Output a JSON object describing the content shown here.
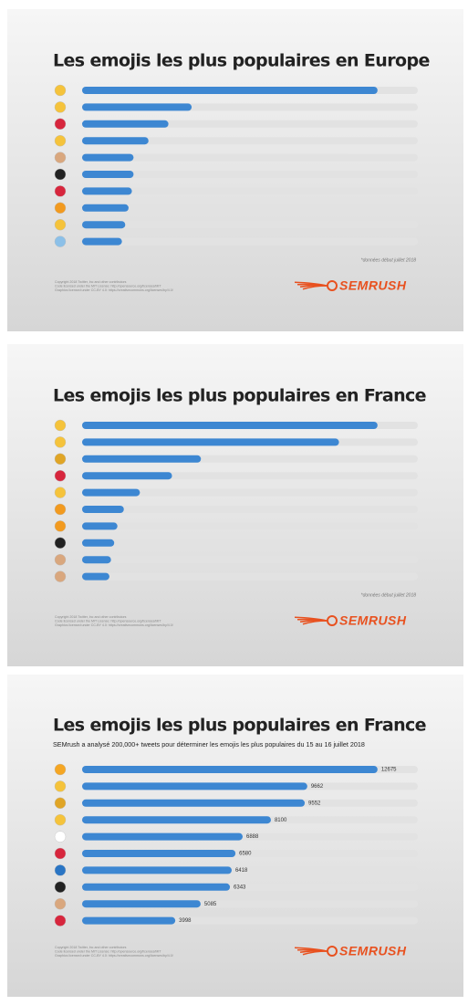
{
  "chart_data": [
    {
      "type": "bar",
      "title": "Les emojis les plus populaires en Europe",
      "values": [
        89,
        33,
        26,
        20,
        15.5,
        15.5,
        15,
        14,
        13,
        12
      ],
      "color": "#3d87d2",
      "data_labels": false,
      "note": "*données début juillet 2018",
      "credits": [
        "Copyright 2018 Twitter, Inc and other contributors",
        "Code licensed under the MIT License: http://opensource.org/licenses/MIT",
        "Graphics licensed under CC-BY 4.0: https://creativecommons.org/licenses/by/4.0/"
      ],
      "logo": "SEMRUSH"
    },
    {
      "type": "bar",
      "title": "Les emojis les plus populaires en France",
      "values": [
        92,
        80,
        37,
        28,
        18,
        13,
        11,
        10,
        9,
        8.5
      ],
      "color": "#3d87d2",
      "data_labels": false,
      "note": "*données début juillet 2018",
      "credits": [
        "Copyright 2018 Twitter, Inc and other contributors",
        "Code licensed under the MIT License: http://opensource.org/licenses/MIT",
        "Graphics licensed under CC-BY 4.0: https://creativecommons.org/licenses/by/4.0/"
      ],
      "logo": "SEMRUSH"
    },
    {
      "type": "bar",
      "title": "Les emojis les plus populaires en France",
      "subtitle": "SEMrush a analysé 200,000+ tweets pour déterminer les emojis les plus populaires du 15 au 16 juillet 2018",
      "values": [
        12675,
        9662,
        9552,
        8100,
        6888,
        6580,
        6418,
        6343,
        5085,
        3998
      ],
      "color": "#3d87d2",
      "data_labels": true,
      "credits": [
        "Copyright 2018 Twitter, Inc and other contributors",
        "Code licensed under the MIT License: http://opensource.org/licenses/MIT",
        "Graphics licensed under CC-BY 4.0: https://creativecommons.org/licenses/by/4.0/"
      ],
      "logo": "SEMRUSH"
    }
  ]
}
